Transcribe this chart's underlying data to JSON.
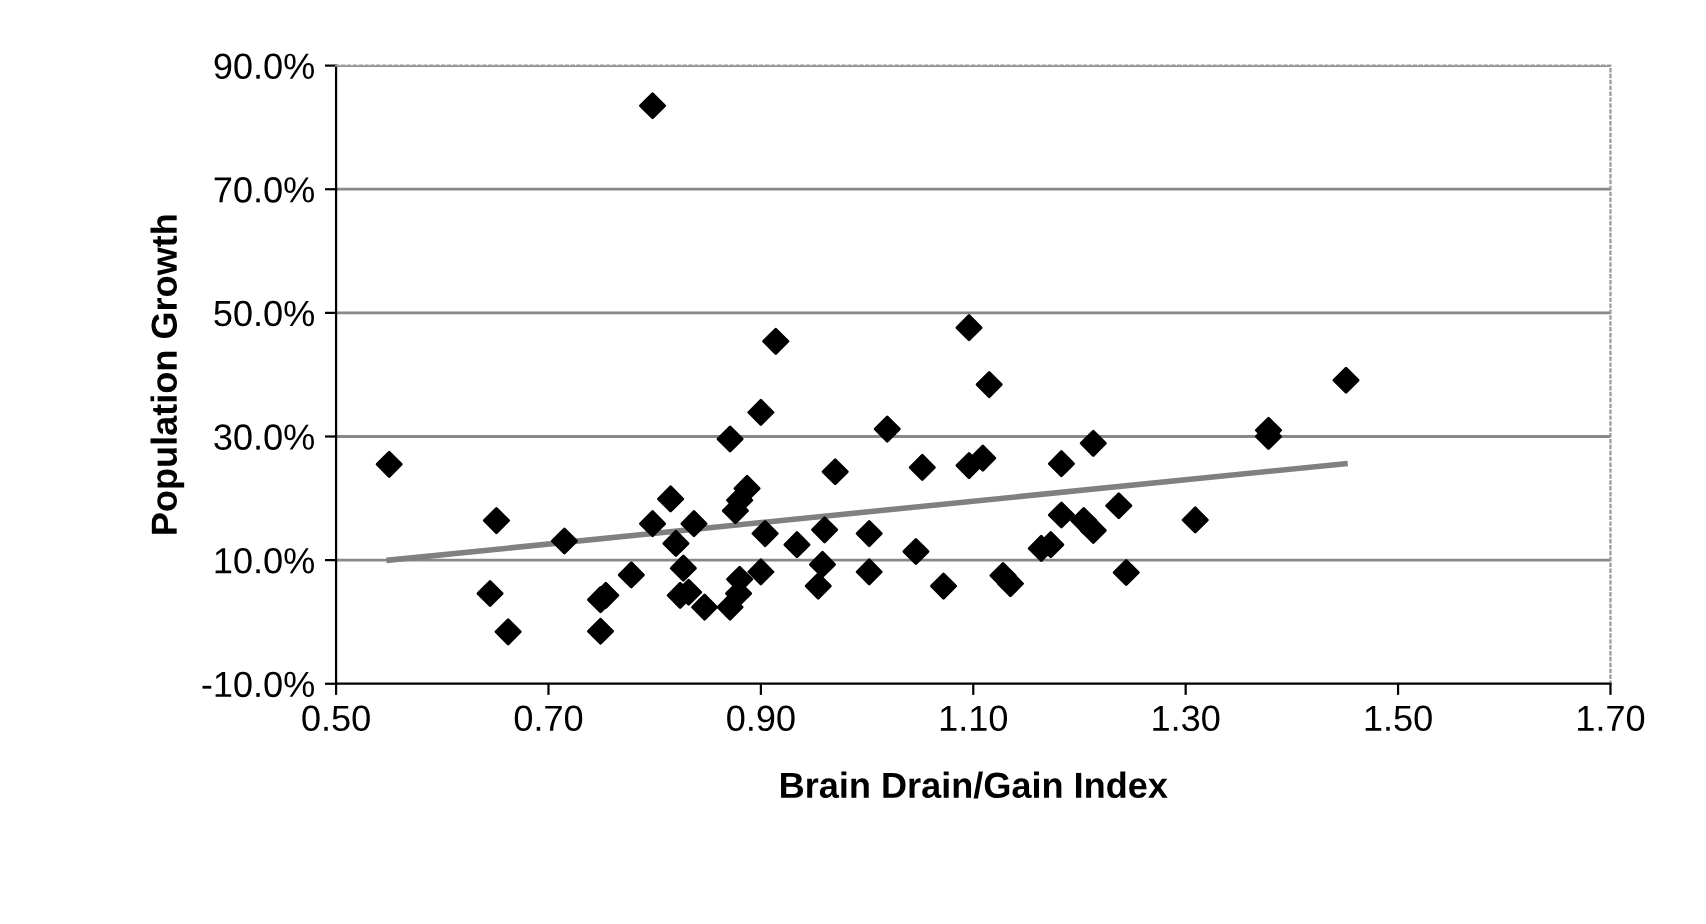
{
  "chart_data": {
    "type": "scatter",
    "xlabel": "Brain Drain/Gain Index",
    "ylabel": "Population Growth",
    "xlim": [
      0.5,
      1.7
    ],
    "ylim": [
      -10,
      90
    ],
    "xticks": [
      {
        "value": 0.5,
        "label": "0.50"
      },
      {
        "value": 0.7,
        "label": "0.70"
      },
      {
        "value": 0.9,
        "label": "0.90"
      },
      {
        "value": 1.1,
        "label": "1.10"
      },
      {
        "value": 1.3,
        "label": "1.30"
      },
      {
        "value": 1.5,
        "label": "1.50"
      },
      {
        "value": 1.7,
        "label": "1.70"
      }
    ],
    "yticks": [
      {
        "value": -10,
        "label": "-10.0%"
      },
      {
        "value": 10,
        "label": "10.0%"
      },
      {
        "value": 30,
        "label": "30.0%"
      },
      {
        "value": 50,
        "label": "50.0%"
      },
      {
        "value": 70,
        "label": "70.0%"
      },
      {
        "value": 90,
        "label": "90.0%"
      }
    ],
    "grid": "y",
    "series": [
      {
        "color": "#000000",
        "marker": "diamond",
        "x": [
          0.55,
          0.798,
          0.651,
          0.645,
          0.662,
          0.715,
          0.749,
          0.754,
          0.749,
          0.778,
          0.798,
          0.815,
          0.82,
          0.837,
          0.827,
          0.824,
          0.832,
          0.847,
          0.871,
          0.871,
          0.879,
          0.88,
          0.876,
          0.88,
          0.887,
          0.9,
          0.914,
          0.9,
          0.904,
          0.934,
          0.96,
          0.958,
          0.954,
          0.97,
          1.002,
          1.002,
          1.019,
          1.046,
          1.052,
          1.072,
          1.096,
          1.115,
          1.096,
          1.109,
          1.128,
          1.135,
          1.164,
          1.173,
          1.183,
          1.183,
          1.204,
          1.213,
          1.213,
          1.237,
          1.244,
          1.309,
          1.378,
          1.378,
          1.451
        ],
        "values": [
          25.5,
          83.5,
          16.4,
          4.6,
          -1.6,
          13.1,
          3.6,
          4.3,
          -1.5,
          7.6,
          15.9,
          19.9,
          12.7,
          15.9,
          8.7,
          4.3,
          4.8,
          2.4,
          29.6,
          2.4,
          4.6,
          6.9,
          18.0,
          19.7,
          21.6,
          33.9,
          45.4,
          8.1,
          14.3,
          12.5,
          14.9,
          9.3,
          5.8,
          24.3,
          14.3,
          8.1,
          31.2,
          11.4,
          25.0,
          5.8,
          47.6,
          38.4,
          25.3,
          26.5,
          7.5,
          6.2,
          11.9,
          12.5,
          25.6,
          17.3,
          16.4,
          14.8,
          28.9,
          18.8,
          8.0,
          16.5,
          31.0,
          30.0,
          39.1
        ]
      },
      {
        "type": "line",
        "color": "#808080",
        "marker": "none",
        "line_style": "solid",
        "x": [
          0.55,
          1.45
        ],
        "values": [
          10.0,
          25.6
        ]
      }
    ]
  }
}
